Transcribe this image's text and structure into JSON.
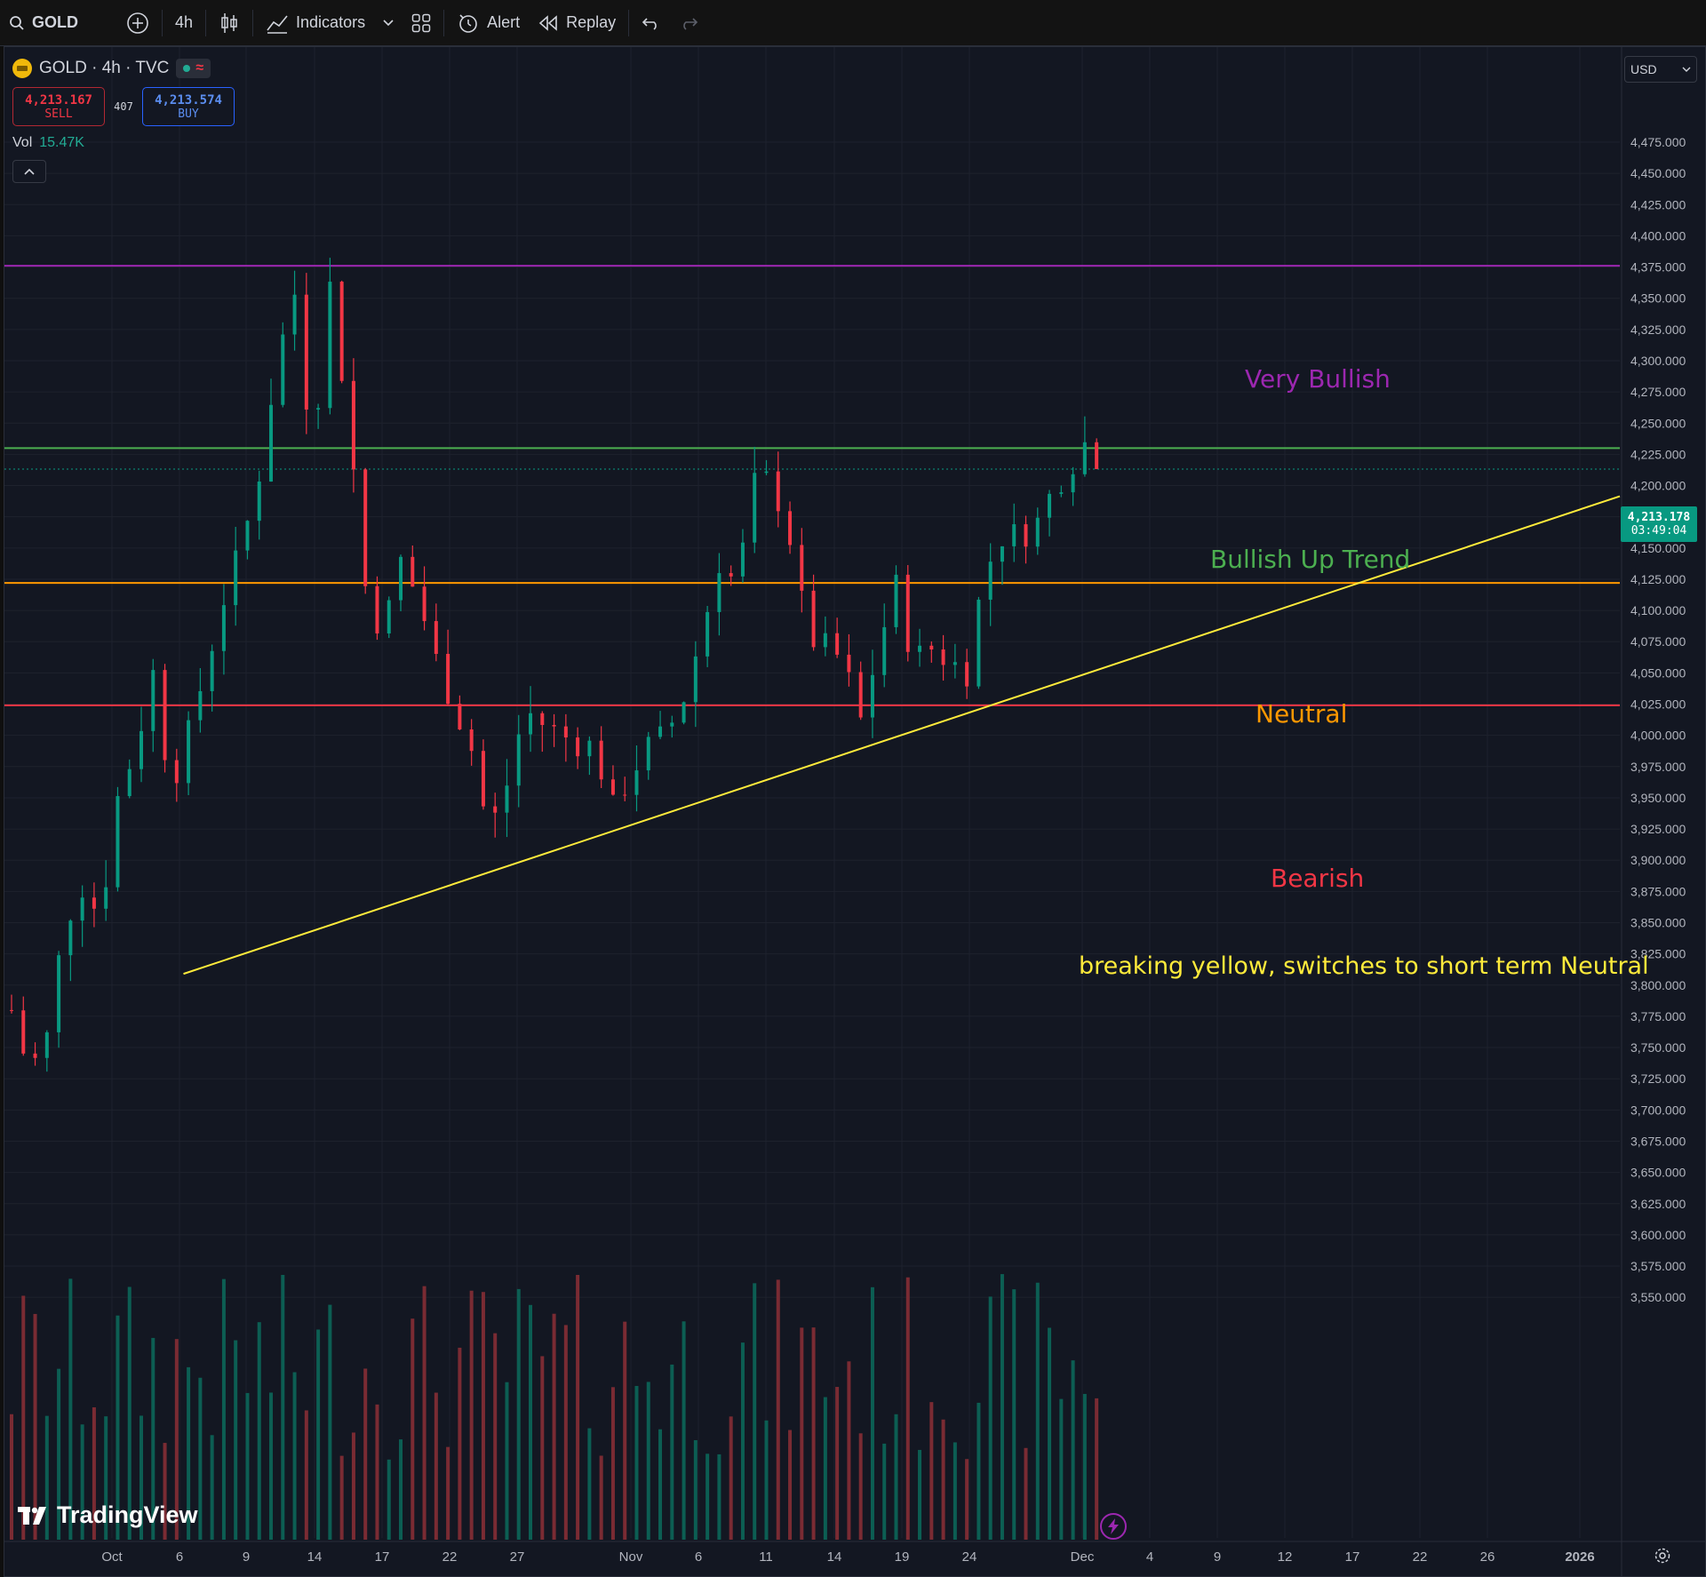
{
  "toolbar": {
    "symbol": "GOLD",
    "interval": "4h",
    "indicators_label": "Indicators",
    "alert_label": "Alert",
    "replay_label": "Replay"
  },
  "legend": {
    "title": "GOLD · 4h · TVC",
    "sell_price": "4,213.167",
    "sell_label": "SELL",
    "spread": "407",
    "buy_price": "4,213.574",
    "buy_label": "BUY",
    "vol_label": "Vol",
    "vol_value": "15.47K"
  },
  "currency": "USD",
  "price_tag": {
    "price": "4,213.178",
    "countdown": "03:49:04"
  },
  "logo_text": "TradingView",
  "colors": {
    "background": "#131722",
    "up": "#089981",
    "down": "#f23645",
    "very_bullish": "#9c27b0",
    "bullish": "#4caf50",
    "neutral": "#ff9800",
    "bearish": "#f23645",
    "trendline": "#ffeb3b"
  },
  "zone_labels": {
    "very_bullish": "Very Bullish",
    "bullish": "Bullish Up Trend",
    "neutral": "Neutral",
    "bearish": "Bearish",
    "note": "breaking yellow, switches to short term Neutral"
  },
  "chart_data": {
    "type": "candlestick",
    "symbol": "GOLD",
    "interval": "4h",
    "ylim": [
      3540,
      4510
    ],
    "y_ticks": [
      "4,475.000",
      "4,450.000",
      "4,425.000",
      "4,400.000",
      "4,375.000",
      "4,350.000",
      "4,325.000",
      "4,300.000",
      "4,275.000",
      "4,250.000",
      "4,225.000",
      "4,200.000",
      "4,175.000",
      "4,150.000",
      "4,125.000",
      "4,100.000",
      "4,075.000",
      "4,050.000",
      "4,025.000",
      "4,000.000",
      "3,975.000",
      "3,950.000",
      "3,925.000",
      "3,900.000",
      "3,875.000",
      "3,850.000",
      "3,825.000",
      "3,800.000",
      "3,775.000",
      "3,750.000",
      "3,725.000",
      "3,700.000",
      "3,675.000",
      "3,650.000",
      "3,625.000",
      "3,600.000",
      "3,575.000",
      "3,550.000"
    ],
    "x_ticks": [
      "Oct",
      "6",
      "9",
      "14",
      "17",
      "22",
      "27",
      "Nov",
      "6",
      "11",
      "14",
      "19",
      "24",
      "Dec",
      "4",
      "9",
      "12",
      "17",
      "22",
      "26",
      "2026"
    ],
    "horizontal_levels": [
      {
        "name": "Very Bullish",
        "price": 4376
      },
      {
        "name": "Bullish Up Trend",
        "price": 4230
      },
      {
        "name": "Neutral",
        "price": 4122
      },
      {
        "name": "Bearish",
        "price": 4024
      }
    ],
    "trendline": {
      "from_date": "Oct 6",
      "from_price": 3809,
      "to_date": "Dec 12",
      "to_price": 4124
    },
    "last_price": 4213.178,
    "close_path": [
      {
        "date": "Oct 1",
        "close": 3780
      },
      {
        "date": "Oct 2",
        "close": 3730
      },
      {
        "date": "Oct 3",
        "close": 3758
      },
      {
        "date": "Oct 4",
        "close": 3850
      },
      {
        "date": "Oct 5",
        "close": 3880
      },
      {
        "date": "Oct 6",
        "close": 3855
      },
      {
        "date": "Oct 7",
        "close": 3950
      },
      {
        "date": "Oct 8",
        "close": 3990
      },
      {
        "date": "Oct 9",
        "close": 4050
      },
      {
        "date": "Oct 10",
        "close": 3960
      },
      {
        "date": "Oct 11",
        "close": 4000
      },
      {
        "date": "Oct 13",
        "close": 4110
      },
      {
        "date": "Oct 14",
        "close": 4150
      },
      {
        "date": "Oct 15",
        "close": 4210
      },
      {
        "date": "Oct 16",
        "close": 4300
      },
      {
        "date": "Oct 17",
        "close": 4355
      },
      {
        "date": "Oct 18",
        "close": 4230
      },
      {
        "date": "Oct 19",
        "close": 4360
      },
      {
        "date": "Oct 20",
        "close": 4260
      },
      {
        "date": "Oct 21",
        "close": 4120
      },
      {
        "date": "Oct 22",
        "close": 4080
      },
      {
        "date": "Oct 23",
        "close": 4140
      },
      {
        "date": "Oct 24",
        "close": 4110
      },
      {
        "date": "Oct 25",
        "close": 4060
      },
      {
        "date": "Oct 27",
        "close": 3990
      },
      {
        "date": "Oct 28",
        "close": 3920
      },
      {
        "date": "Oct 29",
        "close": 3960
      },
      {
        "date": "Oct 30",
        "close": 4020
      },
      {
        "date": "Nov 1",
        "close": 4000
      },
      {
        "date": "Nov 3",
        "close": 3990
      },
      {
        "date": "Nov 4",
        "close": 3940
      },
      {
        "date": "Nov 5",
        "close": 3970
      },
      {
        "date": "Nov 6",
        "close": 3990
      },
      {
        "date": "Nov 7",
        "close": 4000
      },
      {
        "date": "Nov 8",
        "close": 4030
      },
      {
        "date": "Nov 9",
        "close": 4080
      },
      {
        "date": "Nov 10",
        "close": 4140
      },
      {
        "date": "Nov 11",
        "close": 4120
      },
      {
        "date": "Nov 12",
        "close": 4200
      },
      {
        "date": "Nov 13",
        "close": 4205
      },
      {
        "date": "Nov 14",
        "close": 4160
      },
      {
        "date": "Nov 15",
        "close": 4080
      },
      {
        "date": "Nov 17",
        "close": 4060
      },
      {
        "date": "Nov 18",
        "close": 4010
      },
      {
        "date": "Nov 19",
        "close": 4070
      },
      {
        "date": "Nov 20",
        "close": 4120
      },
      {
        "date": "Nov 21",
        "close": 4060
      },
      {
        "date": "Nov 22",
        "close": 4070
      },
      {
        "date": "Nov 24",
        "close": 4050
      },
      {
        "date": "Nov 25",
        "close": 4130
      },
      {
        "date": "Nov 26",
        "close": 4160
      },
      {
        "date": "Nov 27",
        "close": 4160
      },
      {
        "date": "Nov 28",
        "close": 4170
      },
      {
        "date": "Nov 29",
        "close": 4200
      },
      {
        "date": "Dec 1",
        "close": 4240
      },
      {
        "date": "Dec 2",
        "close": 4213
      }
    ]
  }
}
